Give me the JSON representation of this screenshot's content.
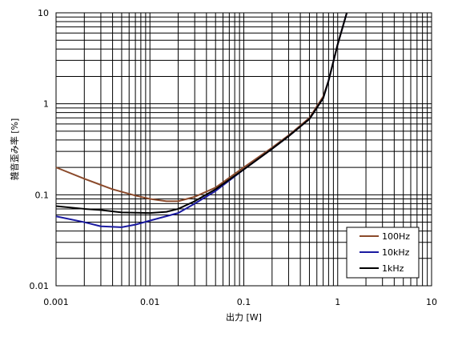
{
  "chart_data": {
    "type": "line",
    "title": "",
    "xlabel": "出力 [W]",
    "ylabel": "雑音歪み率 [%]",
    "x_scale": "log",
    "y_scale": "log",
    "xlim": [
      0.001,
      10
    ],
    "ylim": [
      0.01,
      10
    ],
    "grid": true,
    "legend_position": "bottom-right",
    "x_ticks": [
      {
        "value": 0.001,
        "label": "0.001"
      },
      {
        "value": 0.01,
        "label": "0.01"
      },
      {
        "value": 0.1,
        "label": "0.1"
      },
      {
        "value": 1,
        "label": "1"
      },
      {
        "value": 10,
        "label": "10"
      }
    ],
    "y_ticks": [
      {
        "value": 0.01,
        "label": "0.01"
      },
      {
        "value": 0.1,
        "label": "0.1"
      },
      {
        "value": 1,
        "label": "1"
      },
      {
        "value": 10,
        "label": "10"
      }
    ],
    "series": [
      {
        "name": "100Hz",
        "color": "#8b4a2b",
        "points": [
          [
            0.001,
            0.2
          ],
          [
            0.002,
            0.15
          ],
          [
            0.004,
            0.115
          ],
          [
            0.007,
            0.098
          ],
          [
            0.01,
            0.09
          ],
          [
            0.015,
            0.085
          ],
          [
            0.02,
            0.085
          ],
          [
            0.03,
            0.095
          ],
          [
            0.05,
            0.12
          ],
          [
            0.1,
            0.2
          ],
          [
            0.2,
            0.33
          ],
          [
            0.3,
            0.45
          ],
          [
            0.5,
            0.7
          ],
          [
            0.7,
            1.2
          ],
          [
            0.8,
            1.8
          ],
          [
            1.0,
            4.5
          ],
          [
            1.25,
            10
          ]
        ]
      },
      {
        "name": "10kHz",
        "color": "#1a1aa0",
        "points": [
          [
            0.001,
            0.058
          ],
          [
            0.002,
            0.05
          ],
          [
            0.003,
            0.045
          ],
          [
            0.005,
            0.044
          ],
          [
            0.007,
            0.047
          ],
          [
            0.01,
            0.052
          ],
          [
            0.02,
            0.063
          ],
          [
            0.03,
            0.08
          ],
          [
            0.05,
            0.11
          ],
          [
            0.1,
            0.19
          ],
          [
            0.2,
            0.32
          ],
          [
            0.3,
            0.44
          ],
          [
            0.5,
            0.68
          ],
          [
            0.7,
            1.15
          ],
          [
            0.8,
            1.8
          ],
          [
            1.0,
            4.5
          ],
          [
            1.25,
            10
          ]
        ]
      },
      {
        "name": "1kHz",
        "color": "#000000",
        "points": [
          [
            0.001,
            0.075
          ],
          [
            0.002,
            0.07
          ],
          [
            0.003,
            0.068
          ],
          [
            0.005,
            0.064
          ],
          [
            0.01,
            0.063
          ],
          [
            0.015,
            0.065
          ],
          [
            0.02,
            0.07
          ],
          [
            0.03,
            0.085
          ],
          [
            0.05,
            0.115
          ],
          [
            0.1,
            0.19
          ],
          [
            0.2,
            0.32
          ],
          [
            0.3,
            0.44
          ],
          [
            0.5,
            0.68
          ],
          [
            0.7,
            1.15
          ],
          [
            0.8,
            1.8
          ],
          [
            1.0,
            4.5
          ],
          [
            1.25,
            10
          ]
        ]
      }
    ]
  }
}
